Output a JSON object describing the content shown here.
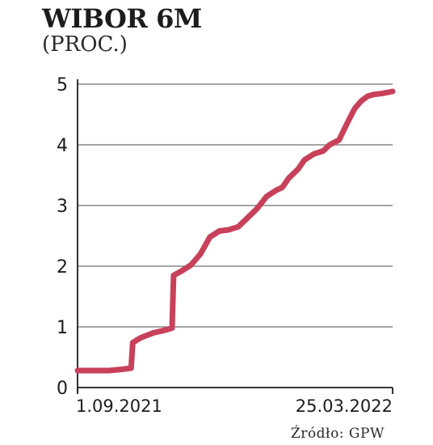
{
  "title": "WIBOR 6M",
  "subtitle": "(PROC.)",
  "source": "Źródło: GPW",
  "chart_data": {
    "type": "line",
    "title": "WIBOR 6M",
    "ylabel": "",
    "xlabel": "",
    "ylim": [
      0,
      5
    ],
    "yticks": [
      0,
      1,
      2,
      3,
      4,
      5
    ],
    "xtick_labels": [
      "1.09.2021",
      "25.03.2022"
    ],
    "grid": true,
    "line_color": "#c8415b",
    "series": [
      {
        "x": [
          0,
          0.04,
          0.1,
          0.14,
          0.17,
          0.175,
          0.2,
          0.24,
          0.28,
          0.3,
          0.305,
          0.33,
          0.36,
          0.39,
          0.42,
          0.45,
          0.48,
          0.51,
          0.53,
          0.55,
          0.57,
          0.6,
          0.63,
          0.65,
          0.67,
          0.7,
          0.72,
          0.75,
          0.78,
          0.8,
          0.83,
          0.86,
          0.88,
          0.9,
          0.92,
          0.94,
          0.97,
          1.0
        ],
        "y": [
          0.28,
          0.28,
          0.28,
          0.3,
          0.32,
          0.74,
          0.82,
          0.9,
          0.95,
          0.98,
          1.85,
          1.92,
          2.02,
          2.2,
          2.48,
          2.58,
          2.6,
          2.65,
          2.75,
          2.85,
          2.95,
          3.15,
          3.25,
          3.3,
          3.45,
          3.6,
          3.75,
          3.85,
          3.9,
          4.0,
          4.08,
          4.4,
          4.6,
          4.72,
          4.8,
          4.83,
          4.85,
          4.88
        ]
      }
    ]
  }
}
